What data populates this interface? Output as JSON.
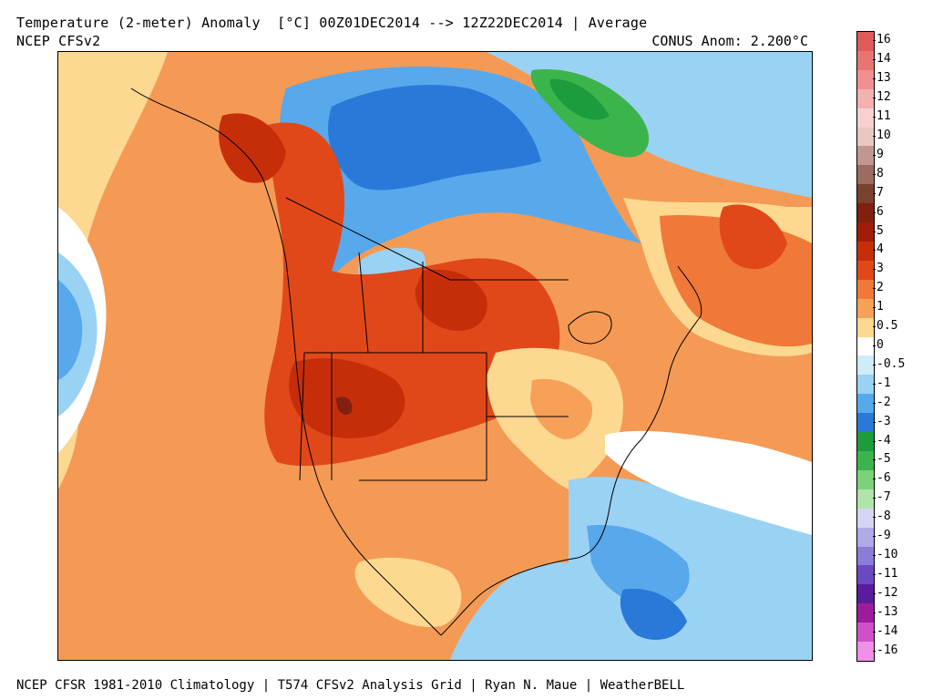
{
  "header": {
    "title": "Temperature (2-meter) Anomaly  [°C] 00Z01DEC2014 --> 12Z22DEC2014 | Average",
    "model": "NCEP CFSv2",
    "conus_anom": "CONUS Anom: 2.200°C"
  },
  "colorbar": {
    "labels": [
      "16",
      "14",
      "13",
      "12",
      "11",
      "10",
      "9",
      "8",
      "7",
      "6",
      "5",
      "4",
      "3",
      "2",
      "1",
      "0.5",
      "0",
      "-0.5",
      "-1",
      "-2",
      "-3",
      "-4",
      "-5",
      "-6",
      "-7",
      "-8",
      "-9",
      "-10",
      "-11",
      "-12",
      "-13",
      "-14",
      "-16"
    ],
    "colors": [
      "#e05a5a",
      "#e87474",
      "#f09090",
      "#f5b0b0",
      "#f7d0d0",
      "#e8c8c0",
      "#c09890",
      "#9c6c60",
      "#7a4030",
      "#802010",
      "#a01c08",
      "#c62e0a",
      "#e0481a",
      "#f07838",
      "#f7a058",
      "#fcd890",
      "#ffffff",
      "#d0ecfa",
      "#9ad2f4",
      "#58a8ec",
      "#2a78d8",
      "#1c9c3c",
      "#3cb44c",
      "#7ad27a",
      "#b0e4a8",
      "#d4d4f4",
      "#b0aae8",
      "#8c7cd8",
      "#6a4ac4",
      "#5a1c9c",
      "#9c1c9c",
      "#d050c8",
      "#f090e8"
    ]
  },
  "map": {
    "region": "North America",
    "colors": {
      "warm_strong": "#a01c08",
      "warm": "#c62e0a",
      "warm_mid": "#e0481a",
      "warm_light": "#f07838",
      "warm_pale": "#f7a058",
      "yellow": "#fcd890",
      "cold_light": "#9ad2f4",
      "cold": "#58a8ec",
      "cold_strong": "#2a78d8",
      "green": "#3cb44c"
    }
  },
  "footer": {
    "credits": "NCEP CFSR 1981-2010 Climatology | T574 CFSv2 Analysis Grid | Ryan N. Maue | WeatherBELL"
  }
}
